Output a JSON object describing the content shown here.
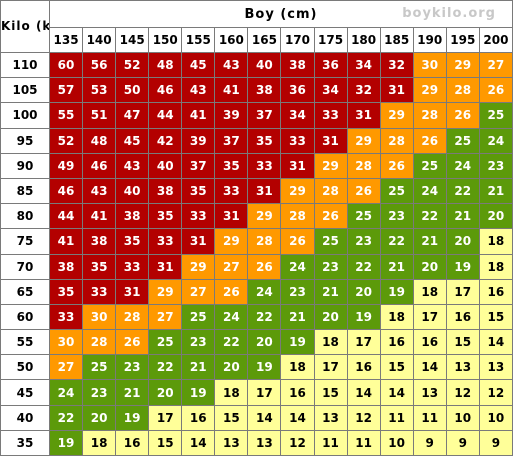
{
  "chart_data": {
    "type": "heatmap",
    "title": "Boy (cm)",
    "ylabel": "Kilo (kg)",
    "watermark": "boykilo.org",
    "x": [
      135,
      140,
      145,
      150,
      155,
      160,
      165,
      170,
      175,
      180,
      185,
      190,
      195,
      200
    ],
    "y": [
      110,
      105,
      100,
      95,
      90,
      85,
      80,
      75,
      70,
      65,
      60,
      55,
      50,
      45,
      40,
      35
    ],
    "values": [
      [
        60,
        56,
        52,
        48,
        45,
        43,
        40,
        38,
        36,
        34,
        32,
        30,
        29,
        27
      ],
      [
        57,
        53,
        50,
        46,
        43,
        41,
        38,
        36,
        34,
        32,
        31,
        29,
        28,
        26
      ],
      [
        55,
        51,
        47,
        44,
        41,
        39,
        37,
        34,
        33,
        31,
        29,
        28,
        26,
        25
      ],
      [
        52,
        48,
        45,
        42,
        39,
        37,
        35,
        33,
        31,
        29,
        28,
        26,
        25,
        24
      ],
      [
        49,
        46,
        43,
        40,
        37,
        35,
        33,
        31,
        29,
        28,
        26,
        25,
        24,
        23
      ],
      [
        46,
        43,
        40,
        38,
        35,
        33,
        31,
        29,
        28,
        26,
        25,
        24,
        22,
        21
      ],
      [
        44,
        41,
        38,
        35,
        33,
        31,
        29,
        28,
        26,
        25,
        23,
        22,
        21,
        20
      ],
      [
        41,
        38,
        35,
        33,
        31,
        29,
        28,
        26,
        25,
        23,
        22,
        21,
        20,
        18
      ],
      [
        38,
        35,
        33,
        31,
        29,
        27,
        26,
        24,
        23,
        22,
        21,
        20,
        19,
        18
      ],
      [
        35,
        33,
        31,
        29,
        27,
        26,
        24,
        23,
        21,
        20,
        19,
        18,
        17,
        16
      ],
      [
        33,
        30,
        28,
        27,
        25,
        24,
        22,
        21,
        20,
        19,
        18,
        17,
        16,
        15
      ],
      [
        30,
        28,
        26,
        25,
        23,
        22,
        20,
        19,
        18,
        17,
        16,
        16,
        15,
        14
      ],
      [
        27,
        25,
        23,
        22,
        21,
        20,
        19,
        18,
        17,
        16,
        15,
        14,
        13,
        13
      ],
      [
        24,
        23,
        21,
        20,
        19,
        18,
        17,
        16,
        15,
        14,
        14,
        13,
        12,
        12
      ],
      [
        22,
        20,
        19,
        17,
        16,
        15,
        14,
        14,
        13,
        12,
        11,
        11,
        10,
        10
      ],
      [
        19,
        18,
        16,
        15,
        14,
        13,
        13,
        12,
        11,
        11,
        10,
        9,
        9,
        9
      ]
    ],
    "color_bands": [
      {
        "min": 0,
        "max": 18,
        "bg": "#ffff99",
        "fg": "#000000"
      },
      {
        "min": 19,
        "max": 25,
        "bg": "#5c9a0a",
        "fg": "#ffffff"
      },
      {
        "min": 26,
        "max": 30,
        "bg": "#ff9900",
        "fg": "#ffffff"
      },
      {
        "min": 31,
        "max": 999,
        "bg": "#b30000",
        "fg": "#ffffff"
      }
    ],
    "band_exceptions": [
      {
        "row": 7,
        "col": 0,
        "band": 3
      },
      {
        "row": 10,
        "col": 0,
        "band": 3
      },
      {
        "row": 11,
        "col": 0,
        "band": 2
      },
      {
        "row": 12,
        "col": 0,
        "band": 2
      }
    ]
  }
}
